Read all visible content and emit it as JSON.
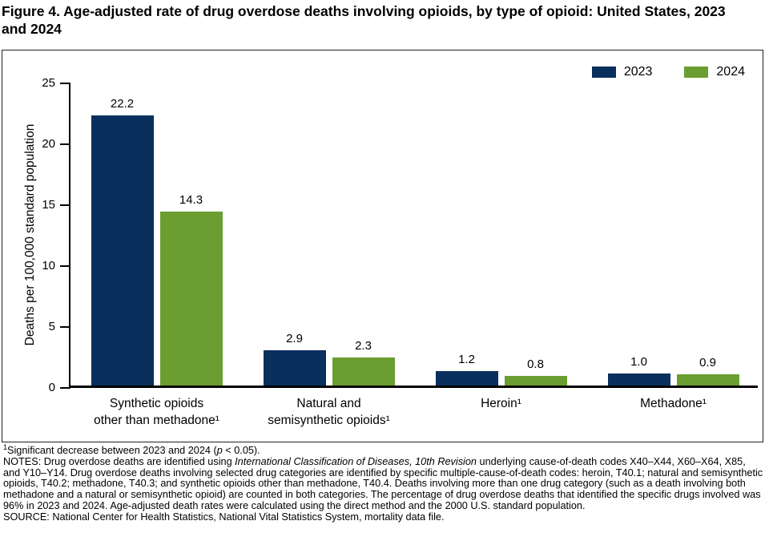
{
  "title": "Figure 4. Age-adjusted rate of drug overdose deaths involving opioids, by type of opioid: United States, 2023 and 2024",
  "legend": {
    "items": [
      {
        "label": "2023",
        "color": "#092f5c"
      },
      {
        "label": "2024",
        "color": "#6b9e31"
      }
    ]
  },
  "chart_data": {
    "type": "bar",
    "title": "Figure 4. Age-adjusted rate of drug overdose deaths involving opioids, by type of opioid: United States, 2023 and 2024",
    "categories": [
      "Synthetic opioids other than methadone¹",
      "Natural and semisynthetic opioids¹",
      "Heroin¹",
      "Methadone¹"
    ],
    "category_lines": [
      [
        "Synthetic opioids",
        "other than methadone¹"
      ],
      [
        "Natural and",
        "semisynthetic opioids¹"
      ],
      [
        "Heroin¹"
      ],
      [
        "Methadone¹"
      ]
    ],
    "series": [
      {
        "name": "2023",
        "color": "#092f5c",
        "values": [
          22.2,
          2.9,
          1.2,
          1.0
        ]
      },
      {
        "name": "2024",
        "color": "#6b9e31",
        "values": [
          14.3,
          2.3,
          0.8,
          0.9
        ]
      }
    ],
    "xlabel": "",
    "ylabel": "Deaths per 100,000 standard population",
    "ylim": [
      0,
      25
    ],
    "yticks": [
      0,
      5,
      10,
      15,
      20,
      25
    ],
    "grid": false,
    "legend_position": "top-right",
    "value_labels": true,
    "value_label_format": "one-decimal"
  },
  "footnotes": {
    "fn1_sup": "1",
    "fn1_pre": "Significant decrease between 2023 and 2024 (",
    "fn1_italic": "p",
    "fn1_post": " < 0.05).",
    "notes_pre": "NOTES: Drug overdose deaths are identified using ",
    "notes_italic": "International Classification of Diseases, 10th Revision",
    "notes_post": " underlying cause-of-death codes X40–X44, X60–X64, X85, and Y10–Y14. Drug overdose deaths involving selected drug categories are identified by specific multiple-cause-of-death codes: heroin, T40.1; natural and semisynthetic opioids, T40.2;  methadone, T40.3; and synthetic opioids other than methadone, T40.4. Deaths involving more than one drug category (such as a death involving both methadone and a natural or semisynthetic opioid) are counted in both categories. The percentage of drug overdose deaths that identified the specific drugs involved was 96% in 2023 and 2024. Age-adjusted death rates were calculated using the direct method and the 2000 U.S. standard population.",
    "source": "SOURCE: National Center for Health Statistics, National Vital Statistics System, mortality data file."
  }
}
